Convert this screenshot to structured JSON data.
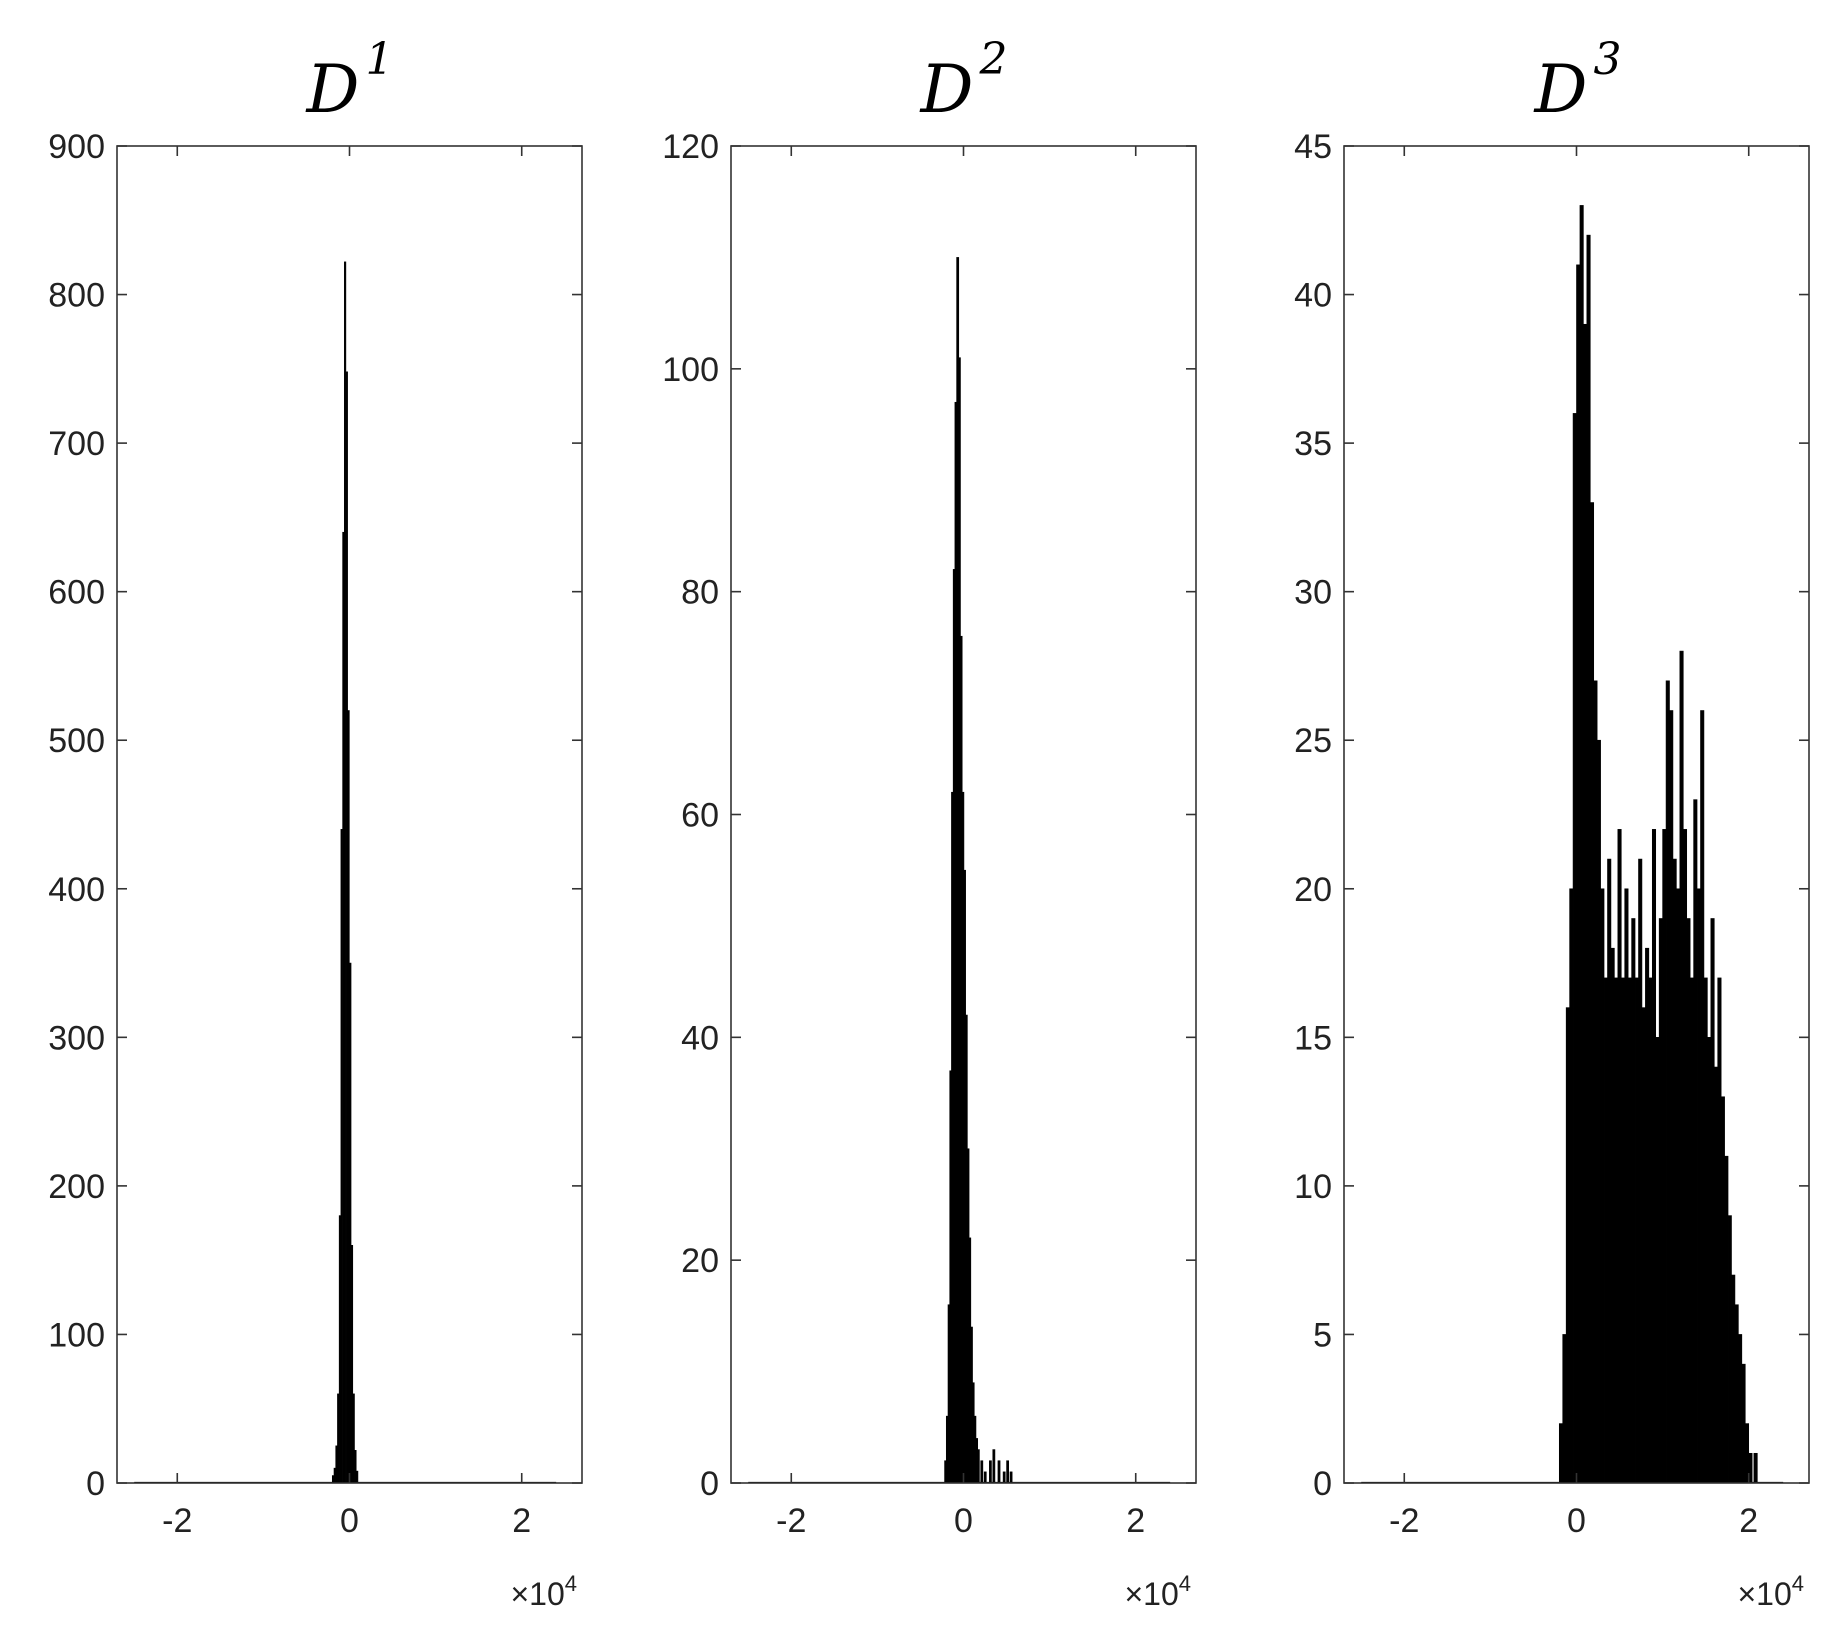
{
  "chart_data": [
    {
      "type": "bar",
      "title": "D",
      "title_superscript": "1",
      "xlabel": "",
      "ylabel": "",
      "x_exponent_label": "×10",
      "x_exponent_power": "4",
      "xlim": [
        -2.7,
        2.7
      ],
      "ylim": [
        0,
        900
      ],
      "xticks": [
        -2,
        0,
        2
      ],
      "yticks": [
        0,
        100,
        200,
        300,
        400,
        500,
        600,
        700,
        800,
        900
      ],
      "grid": false,
      "bin_width": 0.018,
      "bins": [
        [
          -2.5,
          0
        ],
        [
          -0.2,
          5
        ],
        [
          -0.18,
          10
        ],
        [
          -0.16,
          25
        ],
        [
          -0.14,
          60
        ],
        [
          -0.12,
          180
        ],
        [
          -0.1,
          440
        ],
        [
          -0.08,
          640
        ],
        [
          -0.06,
          822
        ],
        [
          -0.04,
          748
        ],
        [
          -0.02,
          520
        ],
        [
          0.0,
          350
        ],
        [
          0.02,
          160
        ],
        [
          0.04,
          60
        ],
        [
          0.06,
          22
        ],
        [
          0.08,
          8
        ],
        [
          2.4,
          0
        ]
      ]
    },
    {
      "type": "bar",
      "title": "D",
      "title_superscript": "2",
      "xlabel": "",
      "ylabel": "",
      "x_exponent_label": "×10",
      "x_exponent_power": "4",
      "xlim": [
        -2.7,
        2.7
      ],
      "ylim": [
        0,
        120
      ],
      "xticks": [
        -2,
        0,
        2
      ],
      "yticks": [
        0,
        20,
        40,
        60,
        80,
        100,
        120
      ],
      "grid": false,
      "bin_width": 0.025,
      "bins": [
        [
          -2.5,
          0
        ],
        [
          -0.22,
          2
        ],
        [
          -0.2,
          6
        ],
        [
          -0.18,
          16
        ],
        [
          -0.16,
          37
        ],
        [
          -0.14,
          62
        ],
        [
          -0.12,
          82
        ],
        [
          -0.1,
          97
        ],
        [
          -0.08,
          110
        ],
        [
          -0.06,
          101
        ],
        [
          -0.04,
          76
        ],
        [
          -0.02,
          62
        ],
        [
          0.0,
          55
        ],
        [
          0.02,
          42
        ],
        [
          0.04,
          30
        ],
        [
          0.06,
          22
        ],
        [
          0.08,
          14
        ],
        [
          0.1,
          9
        ],
        [
          0.12,
          6
        ],
        [
          0.14,
          4
        ],
        [
          0.16,
          3
        ],
        [
          0.2,
          2
        ],
        [
          0.24,
          1
        ],
        [
          0.3,
          2
        ],
        [
          0.34,
          3
        ],
        [
          0.4,
          2
        ],
        [
          0.46,
          1
        ],
        [
          0.5,
          2
        ],
        [
          0.54,
          1
        ],
        [
          2.4,
          0
        ]
      ]
    },
    {
      "type": "bar",
      "title": "D",
      "title_superscript": "3",
      "xlabel": "",
      "ylabel": "",
      "x_exponent_label": "×10",
      "x_exponent_power": "4",
      "xlim": [
        -2.7,
        2.7
      ],
      "ylim": [
        0,
        45
      ],
      "xticks": [
        -2,
        0,
        2
      ],
      "yticks": [
        0,
        5,
        10,
        15,
        20,
        25,
        30,
        35,
        40,
        45
      ],
      "grid": false,
      "bin_width": 0.04,
      "bins": [
        [
          -2.5,
          0
        ],
        [
          -0.2,
          2
        ],
        [
          -0.16,
          5
        ],
        [
          -0.12,
          16
        ],
        [
          -0.08,
          20
        ],
        [
          -0.04,
          36
        ],
        [
          0.0,
          41
        ],
        [
          0.04,
          43
        ],
        [
          0.08,
          39
        ],
        [
          0.12,
          42
        ],
        [
          0.16,
          33
        ],
        [
          0.2,
          27
        ],
        [
          0.24,
          25
        ],
        [
          0.28,
          20
        ],
        [
          0.32,
          17
        ],
        [
          0.36,
          21
        ],
        [
          0.4,
          18
        ],
        [
          0.44,
          17
        ],
        [
          0.48,
          22
        ],
        [
          0.52,
          17
        ],
        [
          0.56,
          20
        ],
        [
          0.6,
          17
        ],
        [
          0.64,
          19
        ],
        [
          0.68,
          17
        ],
        [
          0.72,
          21
        ],
        [
          0.76,
          16
        ],
        [
          0.8,
          18
        ],
        [
          0.84,
          17
        ],
        [
          0.88,
          22
        ],
        [
          0.92,
          15
        ],
        [
          0.96,
          19
        ],
        [
          1.0,
          22
        ],
        [
          1.04,
          27
        ],
        [
          1.08,
          26
        ],
        [
          1.12,
          21
        ],
        [
          1.16,
          20
        ],
        [
          1.2,
          28
        ],
        [
          1.24,
          22
        ],
        [
          1.28,
          19
        ],
        [
          1.32,
          17
        ],
        [
          1.36,
          23
        ],
        [
          1.4,
          20
        ],
        [
          1.44,
          26
        ],
        [
          1.48,
          17
        ],
        [
          1.52,
          15
        ],
        [
          1.56,
          19
        ],
        [
          1.6,
          14
        ],
        [
          1.64,
          17
        ],
        [
          1.68,
          13
        ],
        [
          1.72,
          11
        ],
        [
          1.76,
          9
        ],
        [
          1.8,
          7
        ],
        [
          1.84,
          6
        ],
        [
          1.88,
          5
        ],
        [
          1.92,
          4
        ],
        [
          1.96,
          2
        ],
        [
          2.0,
          1
        ],
        [
          2.06,
          1
        ],
        [
          2.4,
          0
        ]
      ]
    }
  ]
}
